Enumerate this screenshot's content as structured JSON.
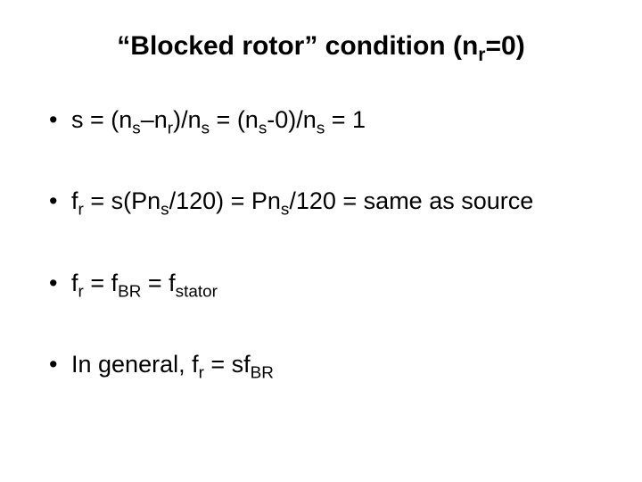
{
  "title_html": "“Blocked rotor” condition (n<sub>r</sub>=0)",
  "bullets": [
    "s = (n<sub>s</sub>–n<sub>r</sub>)/n<sub>s</sub> = (n<sub>s</sub>-0)/n<sub>s</sub> = 1",
    "f<sub>r</sub> = s(Pn<sub>s</sub>/120) = Pn<sub>s</sub>/120 = same as source",
    "f<sub>r</sub> = f<sub>BR</sub> = f<sub>stator</sub>",
    "In general, f<sub>r</sub> = sf<sub>BR</sub>"
  ],
  "style": {
    "background_color": "#ffffff",
    "text_color": "#000000",
    "title_fontsize": 30,
    "body_fontsize": 27,
    "font_family": "Arial"
  }
}
